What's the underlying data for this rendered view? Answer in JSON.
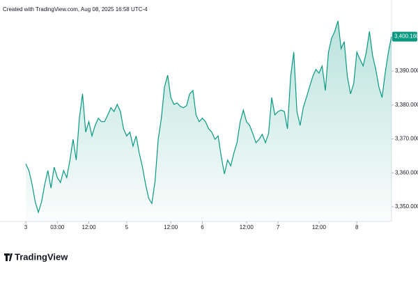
{
  "chart_data": {
    "type": "area",
    "title": "Created with TradingView.com, Aug 08, 2025 16:58 UTC-4",
    "brand": "TradingView",
    "color": "#089981",
    "values": [
      3362.7,
      3360.7,
      3356.6,
      3351.4,
      3348.4,
      3351.4,
      3356.6,
      3360.7,
      3355.5,
      3361.7,
      3358.6,
      3357.2,
      3360.7,
      3358.6,
      3363.8,
      3369.9,
      3363.8,
      3376.1,
      3383.3,
      3372.0,
      3375.1,
      3370.9,
      3374.0,
      3376.1,
      3375.1,
      3375.1,
      3377.1,
      3379.2,
      3378.1,
      3380.2,
      3378.1,
      3373.0,
      3370.9,
      3372.0,
      3367.9,
      3370.9,
      3365.8,
      3361.7,
      3356.6,
      3352.5,
      3351.0,
      3357.6,
      3369.9,
      3376.1,
      3385.3,
      3388.8,
      3382.2,
      3380.2,
      3380.6,
      3379.6,
      3379.2,
      3379.8,
      3383.3,
      3384.3,
      3377.1,
      3375.1,
      3376.1,
      3375.1,
      3373.0,
      3372.0,
      3369.9,
      3370.9,
      3364.8,
      3359.7,
      3363.8,
      3362.1,
      3365.8,
      3368.9,
      3375.1,
      3378.5,
      3375.1,
      3374.0,
      3371.6,
      3368.9,
      3369.9,
      3371.4,
      3368.9,
      3371.6,
      3382.2,
      3377.1,
      3378.1,
      3378.5,
      3378.1,
      3373.0,
      3388.4,
      3395.6,
      3378.1,
      3374.0,
      3379.2,
      3382.2,
      3385.3,
      3388.4,
      3390.5,
      3389.4,
      3391.5,
      3384.3,
      3395.6,
      3399.7,
      3401.7,
      3404.8,
      3396.6,
      3398.7,
      3388.4,
      3383.3,
      3386.3,
      3395.6,
      3393.5,
      3391.5,
      3395.6,
      3401.7,
      3394.6,
      3390.5,
      3385.3,
      3382.2,
      3389.4,
      3395.6,
      3400.16
    ],
    "last_price": {
      "value": 3400.16,
      "label": "3,400.160"
    },
    "xlim": [
      0,
      116
    ],
    "xticks": [
      {
        "value": 0,
        "label": "3"
      },
      {
        "value": 10,
        "label": "03:00"
      },
      {
        "value": 20,
        "label": "12:00"
      },
      {
        "value": 32,
        "label": "5"
      },
      {
        "value": 46,
        "label": "12:00"
      },
      {
        "value": 56,
        "label": "6"
      },
      {
        "value": 70,
        "label": "12:00"
      },
      {
        "value": 80,
        "label": "7"
      },
      {
        "value": 93,
        "label": "12:00"
      },
      {
        "value": 105,
        "label": "8"
      }
    ],
    "ylim": [
      3345.7,
      3408.9
    ],
    "yticks": [
      {
        "value": 3350,
        "label": "3,350.000"
      },
      {
        "value": 3360,
        "label": "3,360.000"
      },
      {
        "value": 3370,
        "label": "3,370.000"
      },
      {
        "value": 3380,
        "label": "3,380.000"
      },
      {
        "value": 3390,
        "label": "3,390.000"
      }
    ]
  }
}
